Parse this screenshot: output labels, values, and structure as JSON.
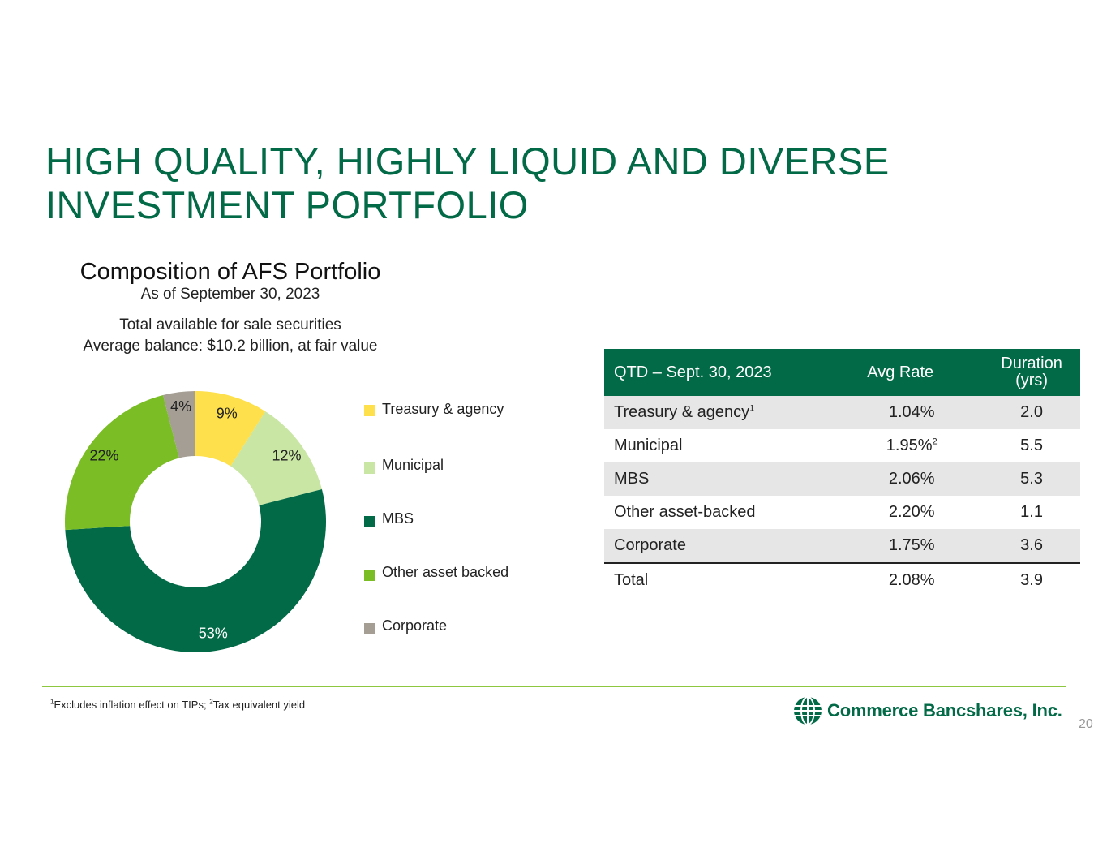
{
  "slide": {
    "title_line1": "HIGH QUALITY, HIGHLY LIQUID AND DIVERSE",
    "title_line2": "INVESTMENT PORTFOLIO",
    "page_number": "20"
  },
  "colors": {
    "brand_green": "#036a47",
    "rule_green": "#8dc63f",
    "row_shade": "#e6e6e6"
  },
  "chart_data": {
    "type": "pie",
    "variant": "donut",
    "title": "Composition of AFS Portfolio",
    "subtitle": "As of September 30, 2023",
    "description_line1": "Total available for sale securities",
    "description_line2": "Average balance: $10.2 billion, at fair value",
    "legend_position": "right",
    "slices": [
      {
        "name": "Treasury & agency",
        "value": 9,
        "label": "9%",
        "color": "#fde04b"
      },
      {
        "name": "Municipal",
        "value": 12,
        "label": "12%",
        "color": "#c9e6a5"
      },
      {
        "name": "MBS",
        "value": 53,
        "label": "53%",
        "color": "#036a47"
      },
      {
        "name": "Other asset backed",
        "value": 22,
        "label": "22%",
        "color": "#7abd25"
      },
      {
        "name": "Corporate",
        "value": 4,
        "label": "4%",
        "color": "#a59e95"
      }
    ]
  },
  "table": {
    "headers": {
      "period": "QTD – Sept. 30, 2023",
      "rate": "Avg Rate",
      "duration_l1": "Duration",
      "duration_l2": "(yrs)"
    },
    "rows": [
      {
        "name": "Treasury & agency",
        "sup": "1",
        "rate": "1.04%",
        "rate_sup": "",
        "duration": "2.0"
      },
      {
        "name": "Municipal",
        "sup": "",
        "rate": "1.95%",
        "rate_sup": "2",
        "duration": "5.5"
      },
      {
        "name": "MBS",
        "sup": "",
        "rate": "2.06%",
        "rate_sup": "",
        "duration": "5.3"
      },
      {
        "name": "Other asset-backed",
        "sup": "",
        "rate": "2.20%",
        "rate_sup": "",
        "duration": "1.1"
      },
      {
        "name": "Corporate",
        "sup": "",
        "rate": "1.75%",
        "rate_sup": "",
        "duration": "3.6"
      },
      {
        "name": "Total",
        "sup": "",
        "rate": "2.08%",
        "rate_sup": "",
        "duration": "3.9"
      }
    ]
  },
  "footnote": {
    "sup1": "1",
    "text1": "Excludes inflation effect on TIPs; ",
    "sup2": "2",
    "text2": "Tax equivalent yield"
  },
  "logo": {
    "name": "Commerce Bancshares, Inc.",
    "icon": "globe-icon"
  }
}
